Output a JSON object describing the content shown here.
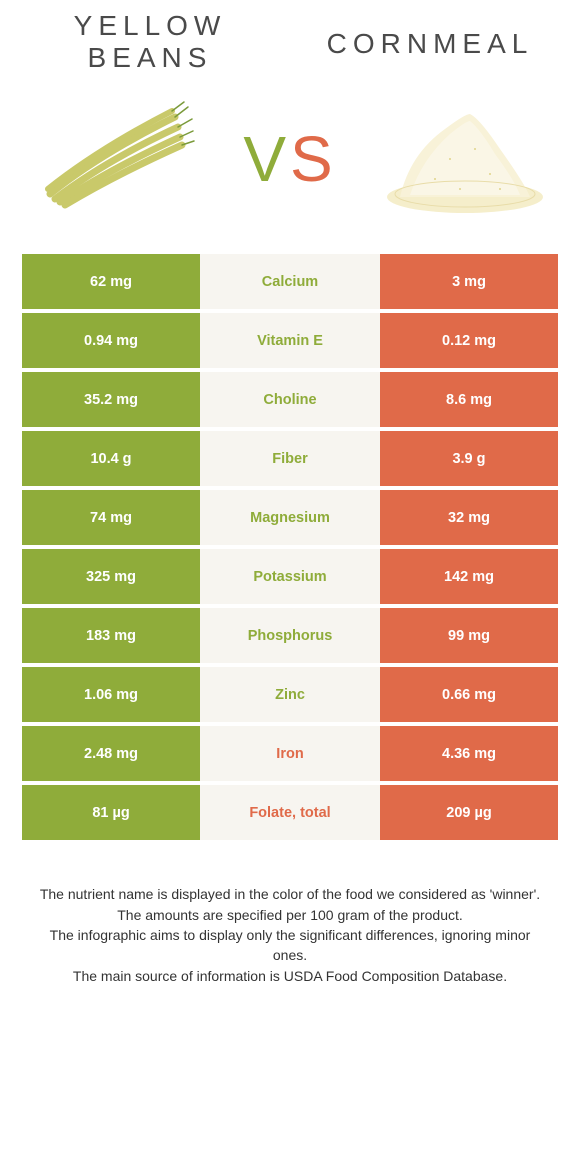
{
  "header": {
    "left_title": "YELLOW BEANS",
    "right_title": "CORNMEAL",
    "vs_v": "V",
    "vs_s": "S"
  },
  "colors": {
    "left": "#8fac3a",
    "right": "#e06a49",
    "mid_bg": "#f7f5f0",
    "text_white": "#ffffff",
    "title_color": "#4a4a4a"
  },
  "rows": [
    {
      "left": "62 mg",
      "label": "Calcium",
      "right": "3 mg",
      "winner": "left"
    },
    {
      "left": "0.94 mg",
      "label": "Vitamin E",
      "right": "0.12 mg",
      "winner": "left"
    },
    {
      "left": "35.2 mg",
      "label": "Choline",
      "right": "8.6 mg",
      "winner": "left"
    },
    {
      "left": "10.4 g",
      "label": "Fiber",
      "right": "3.9 g",
      "winner": "left"
    },
    {
      "left": "74 mg",
      "label": "Magnesium",
      "right": "32 mg",
      "winner": "left"
    },
    {
      "left": "325 mg",
      "label": "Potassium",
      "right": "142 mg",
      "winner": "left"
    },
    {
      "left": "183 mg",
      "label": "Phosphorus",
      "right": "99 mg",
      "winner": "left"
    },
    {
      "left": "1.06 mg",
      "label": "Zinc",
      "right": "0.66 mg",
      "winner": "left"
    },
    {
      "left": "2.48 mg",
      "label": "Iron",
      "right": "4.36 mg",
      "winner": "right"
    },
    {
      "left": "81 µg",
      "label": "Folate, total",
      "right": "209 µg",
      "winner": "right"
    }
  ],
  "footer": {
    "l1": "The nutrient name is displayed in the color of the food we considered as 'winner'.",
    "l2": "The amounts are specified per 100 gram of the product.",
    "l3": "The infographic aims to display only the significant differences, ignoring minor ones.",
    "l4": "The main source of information is USDA Food Composition Database."
  }
}
